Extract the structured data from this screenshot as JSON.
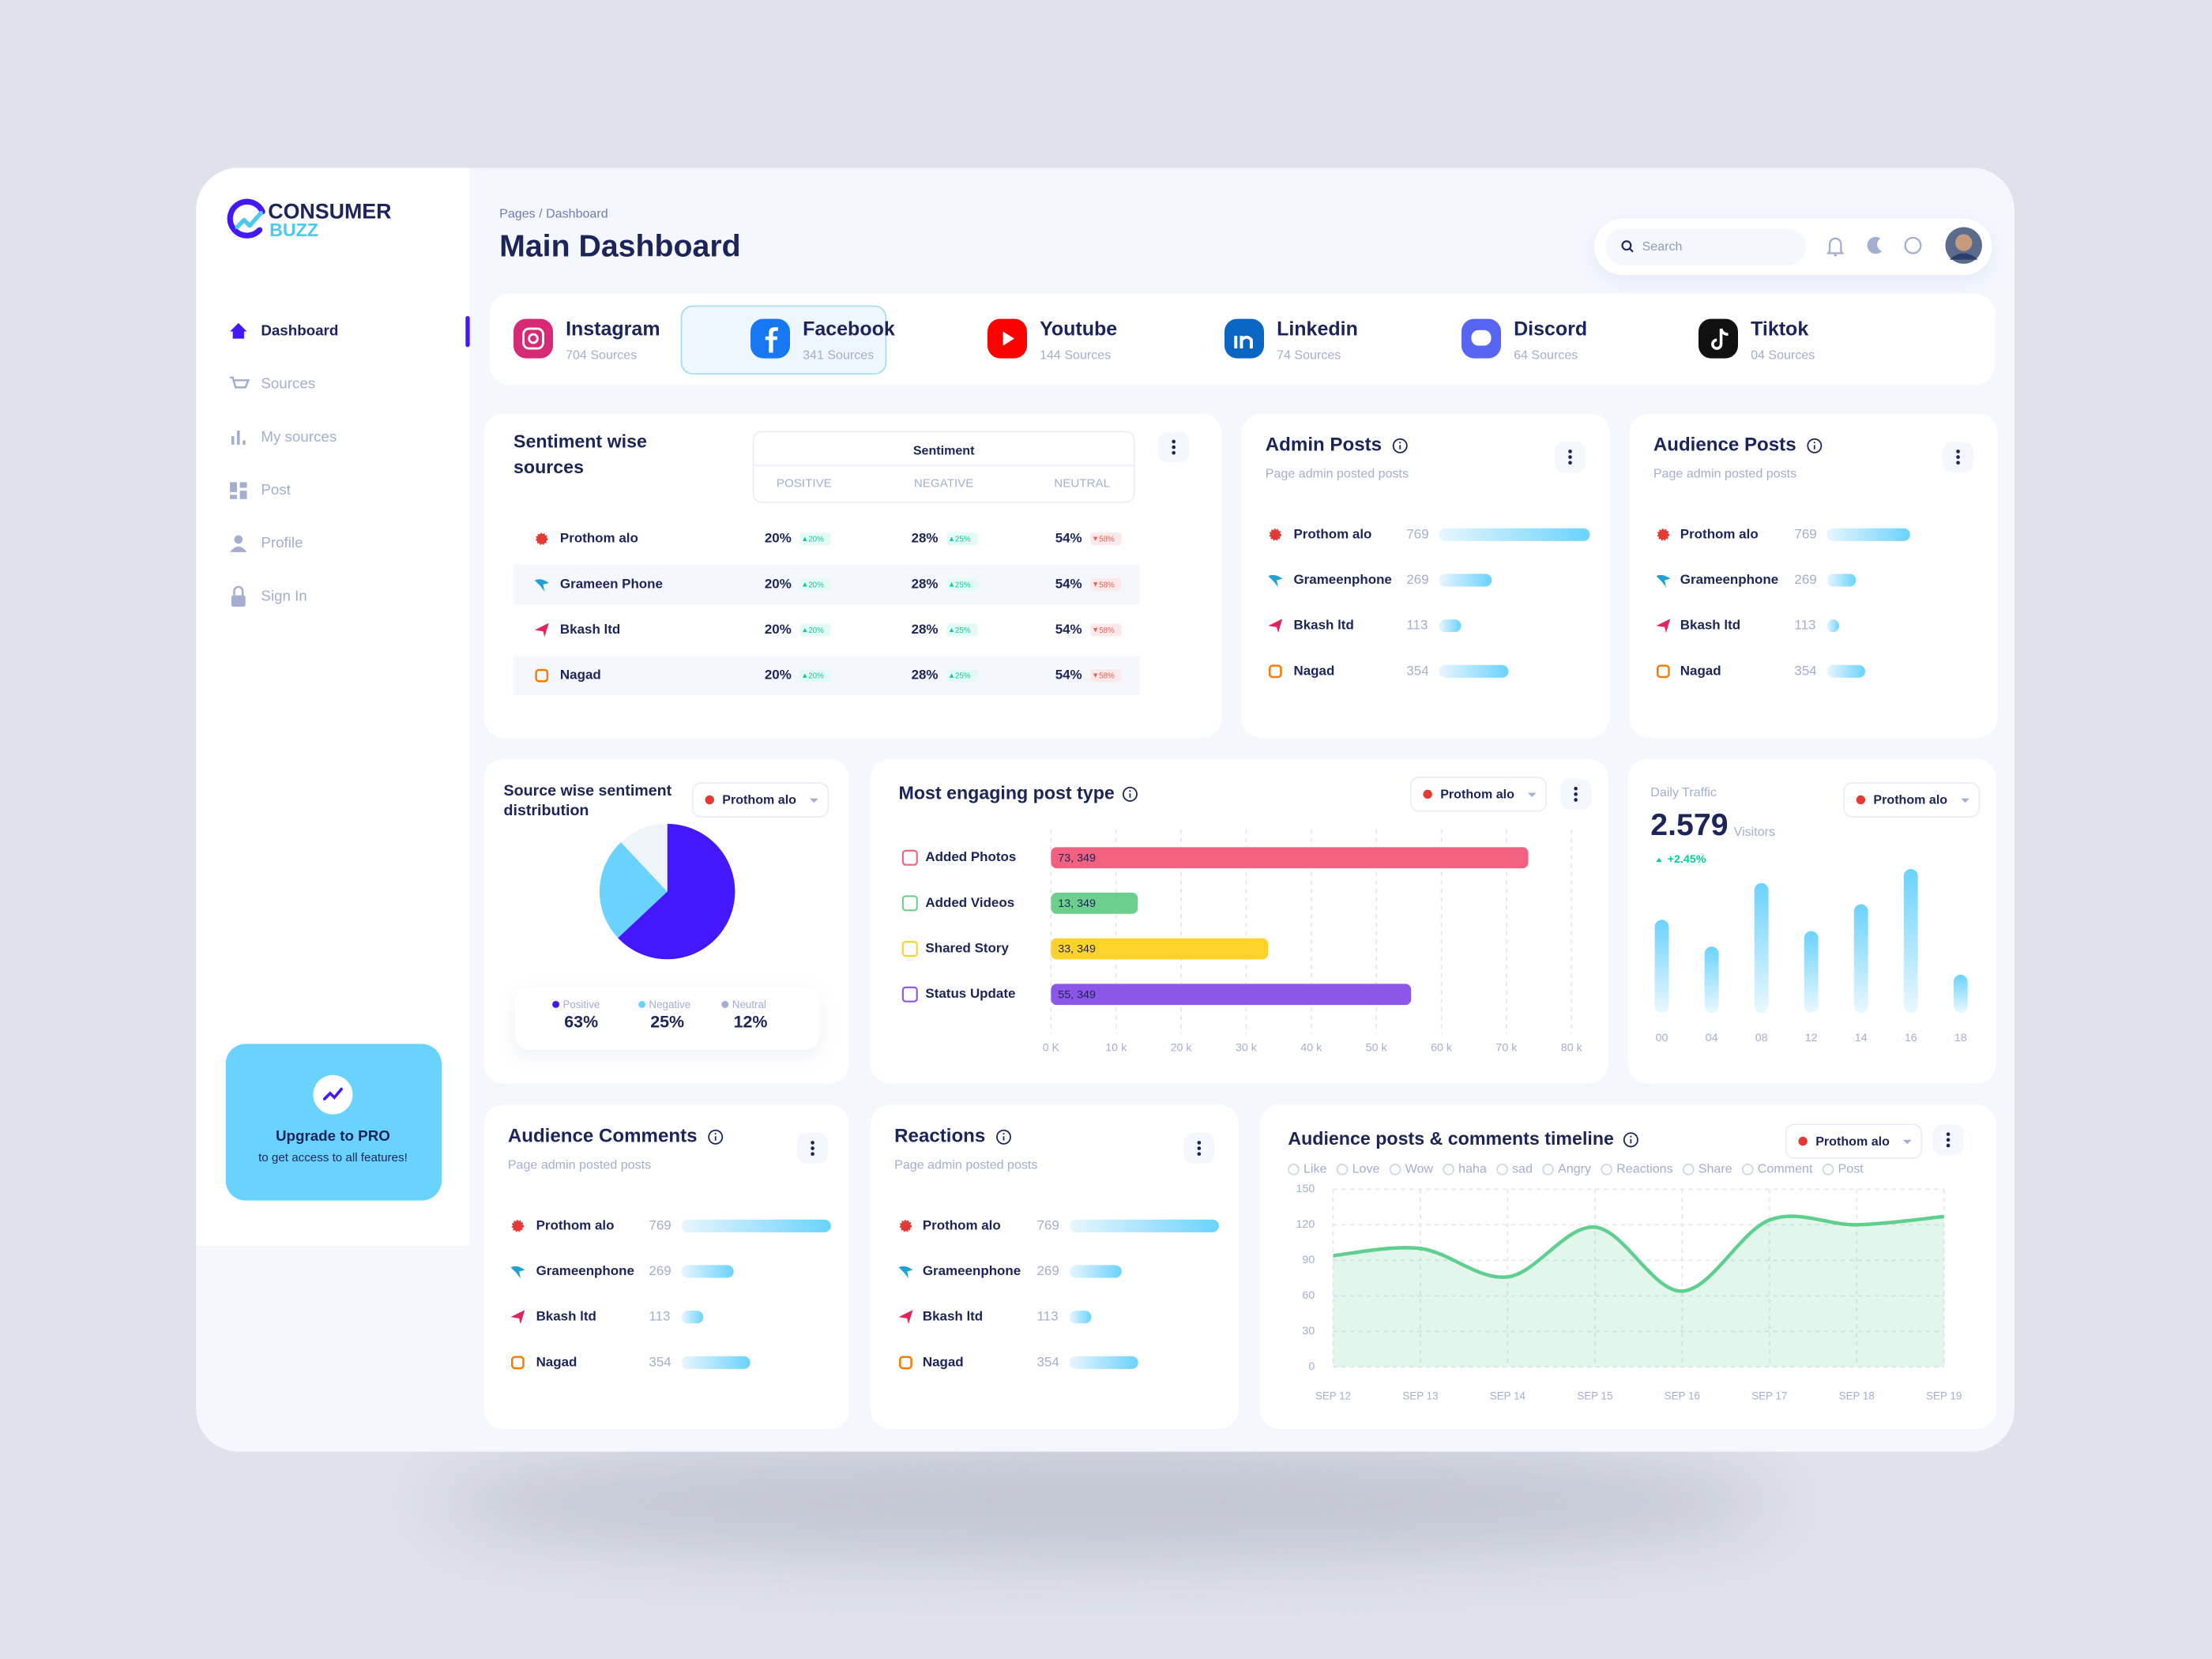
{
  "brand": {
    "name": "CONSUMER",
    "accent": "BUZZ"
  },
  "sidebar": {
    "nav": [
      "Dashboard",
      "Sources",
      "My sources",
      "Post",
      "Profile",
      "Sign In"
    ],
    "upgrade": {
      "title": "Upgrade to PRO",
      "text": "to get access to all features!"
    }
  },
  "header": {
    "breadcrumb": "Pages / Dashboard",
    "title": "Main Dashboard",
    "search_placeholder": "Search"
  },
  "platforms": [
    {
      "name": "Instagram",
      "sources": "704 Sources",
      "color": "#d62976"
    },
    {
      "name": "Facebook",
      "sources": "341 Sources",
      "color": "#1877f2",
      "selected": true
    },
    {
      "name": "Youtube",
      "sources": "144 Sources",
      "color": "#ff0000"
    },
    {
      "name": "Linkedin",
      "sources": "74 Sources",
      "color": "#0a66c2"
    },
    {
      "name": "Discord",
      "sources": "64 Sources",
      "color": "#5865f2"
    },
    {
      "name": "Tiktok",
      "sources": "04 Sources",
      "color": "#111111"
    }
  ],
  "sentiment_table": {
    "title": "Sentiment wise sources",
    "group_header": "Sentiment",
    "columns": [
      "POSITIVE",
      "NEGATIVE",
      "NEUTRAL"
    ],
    "change_trend": [
      "up",
      "up",
      "down"
    ],
    "rows": [
      {
        "name": "Prothom alo",
        "cells": [
          "20%",
          "28%",
          "54%"
        ],
        "changes": [
          "20%",
          "25%",
          "58%"
        ]
      },
      {
        "name": "Grameen Phone",
        "cells": [
          "20%",
          "28%",
          "54%"
        ],
        "changes": [
          "20%",
          "25%",
          "58%"
        ]
      },
      {
        "name": "Bkash ltd",
        "cells": [
          "20%",
          "28%",
          "54%"
        ],
        "changes": [
          "20%",
          "25%",
          "58%"
        ]
      },
      {
        "name": "Nagad",
        "cells": [
          "20%",
          "28%",
          "54%"
        ],
        "changes": [
          "20%",
          "25%",
          "58%"
        ]
      }
    ]
  },
  "chart_data": [
    {
      "type": "bar",
      "orientation": "horizontal",
      "title": "Admin Posts",
      "subtitle": "Page admin posted posts",
      "categories": [
        "Prothom alo",
        "Grameenphone",
        "Bkash ltd",
        "Nagad"
      ],
      "values": [
        769,
        269,
        113,
        354
      ],
      "color": "#6ad2ff"
    },
    {
      "type": "bar",
      "orientation": "horizontal",
      "title": "Audience Posts",
      "subtitle": "Page admin posted posts",
      "categories": [
        "Prothom alo",
        "Grameenphone",
        "Bkash ltd",
        "Nagad"
      ],
      "values": [
        769,
        269,
        113,
        354
      ],
      "color": "#6ad2ff"
    },
    {
      "type": "pie",
      "title": "Source wise sentiment distribution",
      "filter": "Prothom alo",
      "categories": [
        "Positive",
        "Negative",
        "Neutral"
      ],
      "values": [
        63,
        25,
        12
      ],
      "value_labels": [
        "63%",
        "25%",
        "12%"
      ],
      "colors": [
        "#4318ff",
        "#6ad2ff",
        "#eff4fb"
      ]
    },
    {
      "type": "bar",
      "orientation": "horizontal",
      "title": "Most engaging post type",
      "filter": "Prothom alo",
      "categories": [
        "Added Photos",
        "Added Videos",
        "Shared Story",
        "Status Update"
      ],
      "values": [
        73349,
        13349,
        33349,
        55349
      ],
      "value_labels": [
        "73, 349",
        "13, 349",
        "33, 349",
        "55, 349"
      ],
      "colors": [
        "#f2617f",
        "#6cd08c",
        "#fdd22b",
        "#8c56e9"
      ],
      "xlim": [
        0,
        80000
      ],
      "xticks": [
        {
          "value": 0,
          "label": "0 K"
        },
        {
          "value": 10000,
          "label": "10 k"
        },
        {
          "value": 20000,
          "label": "20 k"
        },
        {
          "value": 30000,
          "label": "30 k"
        },
        {
          "value": 40000,
          "label": "40 k"
        },
        {
          "value": 50000,
          "label": "50 k"
        },
        {
          "value": 60000,
          "label": "60 k"
        },
        {
          "value": 70000,
          "label": "70 k"
        },
        {
          "value": 80000,
          "label": "80 k"
        }
      ],
      "grid": true
    },
    {
      "type": "bar",
      "orientation": "vertical",
      "title": "Daily Traffic",
      "total": "2.579",
      "total_unit": "Visitors",
      "change": "+2.45%",
      "filter": "Prothom alo",
      "categories": [
        "00",
        "04",
        "08",
        "12",
        "14",
        "16",
        "18"
      ],
      "values": [
        66,
        47,
        92,
        58,
        77,
        102,
        27
      ],
      "ylim": [
        0,
        110
      ],
      "color": "#6ad2ff"
    },
    {
      "type": "bar",
      "orientation": "horizontal",
      "title": "Audience Comments",
      "subtitle": "Page admin posted posts",
      "categories": [
        "Prothom alo",
        "Grameenphone",
        "Bkash ltd",
        "Nagad"
      ],
      "values": [
        769,
        269,
        113,
        354
      ],
      "color": "#6ad2ff"
    },
    {
      "type": "bar",
      "orientation": "horizontal",
      "title": "Reactions",
      "subtitle": "Page admin posted posts",
      "categories": [
        "Prothom alo",
        "Grameenphone",
        "Bkash ltd",
        "Nagad"
      ],
      "values": [
        769,
        269,
        113,
        354
      ],
      "color": "#6ad2ff"
    },
    {
      "type": "line",
      "title": "Audience posts & comments timeline",
      "filter": "Prothom alo",
      "filters": [
        "Like",
        "Love",
        "Wow",
        "haha",
        "sad",
        "Angry",
        "Reactions",
        "Share",
        "Comment",
        "Post"
      ],
      "categories": [
        "SEP 12",
        "SEP 13",
        "SEP 14",
        "SEP 15",
        "SEP 16",
        "SEP 17",
        "SEP 18",
        "SEP 19"
      ],
      "values": [
        94,
        100,
        76,
        118,
        64,
        124,
        120,
        127
      ],
      "color": "#5ecf8e",
      "ylim": [
        0,
        150
      ],
      "yticks": [
        0,
        30,
        60,
        90,
        120,
        150
      ],
      "grid": true
    }
  ]
}
